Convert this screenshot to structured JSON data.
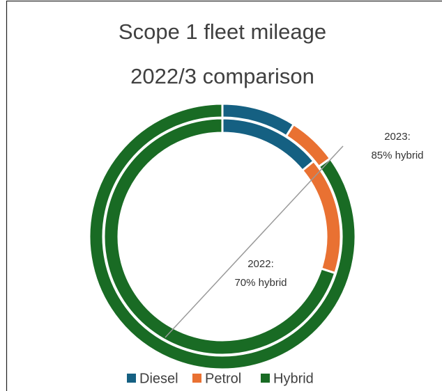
{
  "chart_data": {
    "type": "doughnut",
    "title": [
      "Scope 1 fleet mileage",
      "2022/3 comparison"
    ],
    "categories": [
      "Diesel",
      "Petrol",
      "Hybrid"
    ],
    "colors": [
      "#156082",
      "#e97132",
      "#196b24"
    ],
    "series": [
      {
        "values": [
          14,
          16,
          70
        ]
      },
      {
        "values": [
          9,
          6,
          85
        ]
      }
    ],
    "annotations": [
      {
        "lines": [
          "2023:",
          "85% hybrid"
        ]
      },
      {
        "lines": [
          "2022:",
          "70% hybrid"
        ]
      }
    ],
    "legend": "bottom"
  }
}
